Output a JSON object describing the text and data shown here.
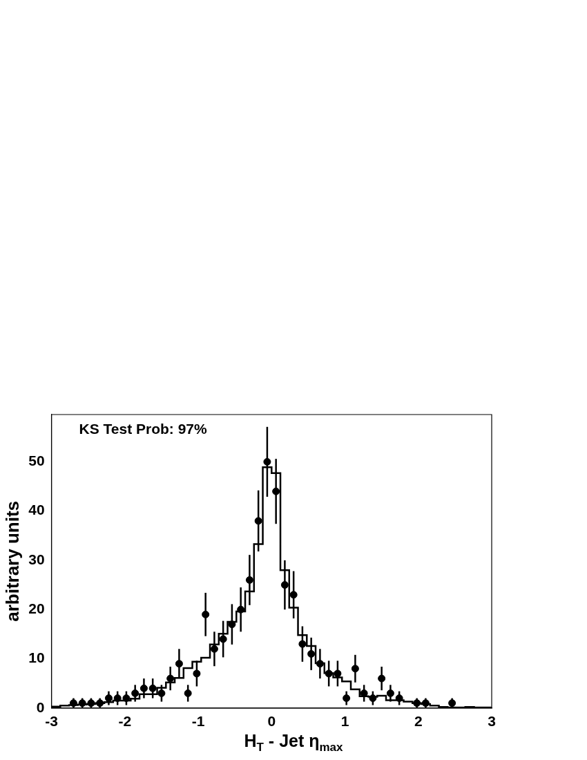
{
  "chart_data": {
    "type": "histogram",
    "xlabel": "H$_{T}$ - Jet η$_{max}$",
    "ylabel": "arbitrary units",
    "annotations": [
      "KS Test Prob: 97%"
    ],
    "bins": [
      -3,
      -2.88,
      -2.76,
      -2.64,
      -2.52,
      -2.4,
      -2.28,
      -2.16,
      -2.04,
      -1.92,
      -1.8,
      -1.68,
      -1.56,
      -1.44,
      -1.32,
      -1.2,
      -1.08,
      -0.96,
      -0.84,
      -0.72,
      -0.6,
      -0.48,
      -0.36,
      -0.24,
      -0.12,
      0,
      0.12,
      0.24,
      0.36,
      0.48,
      0.6,
      0.72,
      0.84,
      0.96,
      1.08,
      1.2,
      1.32,
      1.44,
      1.56,
      1.68,
      1.8,
      1.92,
      2.04,
      2.16,
      2.28,
      2.4,
      2.52,
      2.64,
      2.76,
      2.88,
      3
    ],
    "series": [
      {
        "color": "#000000",
        "values": [
          0.3,
          0.5,
          0.6,
          0.7,
          0.8,
          1.0,
          1.2,
          1.5,
          1.5,
          1.9,
          2.8,
          2.8,
          4.1,
          5.2,
          6.1,
          8.1,
          9.4,
          10.2,
          12.9,
          15.1,
          17.5,
          19.6,
          23.7,
          33.3,
          48.9,
          47.7,
          28,
          20.4,
          14.8,
          12.6,
          9.1,
          7.1,
          6.2,
          5.4,
          3.8,
          2.4,
          2.3,
          2.5,
          1.6,
          1.6,
          1.3,
          1.0,
          0.8,
          0.5,
          0.2,
          0.1,
          0.1,
          0.2,
          0.1,
          0.1
        ]
      },
      {
        "type": "scatter",
        "color": "#000000",
        "x": [
          -2.7,
          -2.58,
          -2.46,
          -2.34,
          -2.22,
          -2.1,
          -1.98,
          -1.86,
          -1.74,
          -1.62,
          -1.5,
          -1.38,
          -1.26,
          -1.14,
          -1.02,
          -0.9,
          -0.78,
          -0.66,
          -0.54,
          -0.42,
          -0.3,
          -0.18,
          -0.06,
          0.06,
          0.18,
          0.3,
          0.42,
          0.54,
          0.66,
          0.78,
          0.9,
          1.02,
          1.14,
          1.26,
          1.38,
          1.5,
          1.62,
          1.74,
          1.98,
          2.1,
          2.46
        ],
        "values": [
          1,
          1,
          1,
          1,
          2,
          2,
          2,
          3,
          4,
          4,
          3,
          6,
          9,
          3,
          7,
          19,
          12,
          14,
          17,
          20,
          26,
          38,
          50,
          44,
          25,
          23,
          13,
          11,
          9,
          7,
          7,
          2,
          8,
          3,
          2,
          6,
          3,
          2,
          1,
          1,
          1
        ],
        "errors": [
          1,
          1,
          1,
          1,
          1.4,
          1.4,
          1.4,
          1.7,
          2,
          2,
          1.7,
          2.4,
          3,
          1.7,
          2.6,
          4.4,
          3.5,
          3.7,
          4.1,
          4.5,
          5.1,
          6.2,
          7.1,
          6.6,
          5,
          4.8,
          3.6,
          3.3,
          3,
          2.6,
          2.6,
          1.4,
          2.8,
          1.7,
          1.4,
          2.4,
          1.7,
          1.4,
          1,
          1,
          1
        ]
      }
    ],
    "xlim": [
      -3,
      3
    ],
    "xticks": [
      -3,
      -2,
      -1,
      0,
      1,
      2,
      3
    ],
    "ylim": [
      0,
      59.6
    ],
    "yticks": [
      0,
      10,
      20,
      30,
      40,
      50
    ],
    "grid": false,
    "legend": false,
    "marker": "circle"
  }
}
